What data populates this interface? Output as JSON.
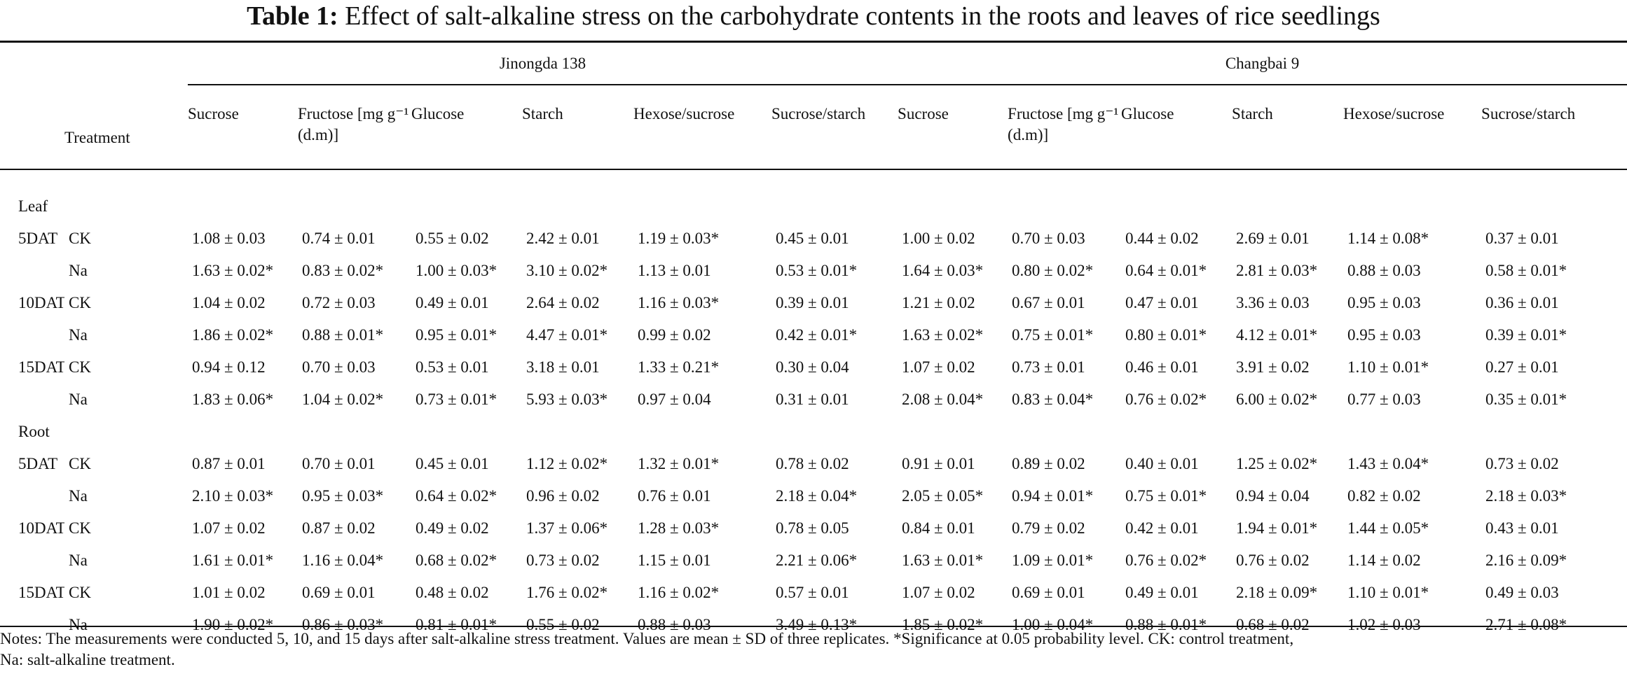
{
  "title": {
    "label": "Table 1:",
    "text": "Effect of salt-alkaline stress on the carbohydrate contents in the roots and leaves of rice seedlings"
  },
  "header": {
    "treatment": "Treatment",
    "variety1": "Jinongda 138",
    "variety2": "Changbai 9",
    "columns": [
      "Sucrose",
      "Fructose [mg g⁻¹ (d.m)]",
      "Glucose",
      "Starch",
      "Hexose/sucrose",
      "Sucrose/starch"
    ]
  },
  "sections": [
    {
      "label": "Leaf",
      "rows": [
        {
          "day": "5DAT",
          "treatment": "CK",
          "values": [
            "1.08 ± 0.03",
            "0.74 ± 0.01",
            "0.55 ± 0.02",
            "2.42 ± 0.01",
            "1.19 ± 0.03*",
            "0.45 ± 0.01",
            "1.00 ± 0.02",
            "0.70 ± 0.03",
            "0.44 ± 0.02",
            "2.69 ± 0.01",
            "1.14 ± 0.08*",
            "0.37 ± 0.01"
          ]
        },
        {
          "day": "",
          "treatment": "Na",
          "values": [
            "1.63 ± 0.02*",
            "0.83 ± 0.02*",
            "1.00 ± 0.03*",
            "3.10 ± 0.02*",
            "1.13 ± 0.01",
            "0.53 ± 0.01*",
            "1.64 ± 0.03*",
            "0.80 ± 0.02*",
            "0.64 ± 0.01*",
            "2.81 ± 0.03*",
            "0.88 ± 0.03",
            "0.58 ± 0.01*"
          ]
        },
        {
          "day": "10DAT",
          "treatment": "CK",
          "values": [
            "1.04 ± 0.02",
            "0.72 ± 0.03",
            "0.49 ± 0.01",
            "2.64 ± 0.02",
            "1.16 ± 0.03*",
            "0.39 ± 0.01",
            "1.21 ± 0.02",
            "0.67 ± 0.01",
            "0.47 ± 0.01",
            "3.36 ± 0.03",
            "0.95 ± 0.03",
            "0.36 ± 0.01"
          ]
        },
        {
          "day": "",
          "treatment": "Na",
          "values": [
            "1.86 ± 0.02*",
            "0.88 ± 0.01*",
            "0.95 ± 0.01*",
            "4.47 ± 0.01*",
            "0.99 ± 0.02",
            "0.42 ± 0.01*",
            "1.63 ± 0.02*",
            "0.75 ± 0.01*",
            "0.80 ± 0.01*",
            "4.12 ± 0.01*",
            "0.95 ± 0.03",
            "0.39 ± 0.01*"
          ]
        },
        {
          "day": "15DAT",
          "treatment": "CK",
          "values": [
            "0.94 ± 0.12",
            "0.70 ± 0.03",
            "0.53 ± 0.01",
            "3.18 ± 0.01",
            "1.33 ± 0.21*",
            "0.30 ± 0.04",
            "1.07 ± 0.02",
            "0.73 ± 0.01",
            "0.46 ± 0.01",
            "3.91 ± 0.02",
            "1.10 ± 0.01*",
            "0.27 ± 0.01"
          ]
        },
        {
          "day": "",
          "treatment": "Na",
          "values": [
            "1.83 ± 0.06*",
            "1.04 ± 0.02*",
            "0.73 ± 0.01*",
            "5.93 ± 0.03*",
            "0.97 ± 0.04",
            "0.31 ± 0.01",
            "2.08 ± 0.04*",
            "0.83 ± 0.04*",
            "0.76 ± 0.02*",
            "6.00 ± 0.02*",
            "0.77 ± 0.03",
            "0.35 ± 0.01*"
          ]
        }
      ]
    },
    {
      "label": "Root",
      "rows": [
        {
          "day": "5DAT",
          "treatment": "CK",
          "values": [
            "0.87 ± 0.01",
            "0.70 ± 0.01",
            "0.45 ± 0.01",
            "1.12 ± 0.02*",
            "1.32 ± 0.01*",
            "0.78 ± 0.02",
            "0.91 ± 0.01",
            "0.89 ± 0.02",
            "0.40 ± 0.01",
            "1.25 ± 0.02*",
            "1.43 ± 0.04*",
            "0.73 ± 0.02"
          ]
        },
        {
          "day": "",
          "treatment": "Na",
          "values": [
            "2.10 ± 0.03*",
            "0.95 ± 0.03*",
            "0.64 ± 0.02*",
            "0.96 ± 0.02",
            "0.76 ± 0.01",
            "2.18 ± 0.04*",
            "2.05 ± 0.05*",
            "0.94 ± 0.01*",
            "0.75 ± 0.01*",
            "0.94 ± 0.04",
            "0.82 ± 0.02",
            "2.18 ± 0.03*"
          ]
        },
        {
          "day": "10DAT",
          "treatment": "CK",
          "values": [
            "1.07 ± 0.02",
            "0.87 ± 0.02",
            "0.49 ± 0.02",
            "1.37 ± 0.06*",
            "1.28 ± 0.03*",
            "0.78 ± 0.05",
            "0.84 ± 0.01",
            "0.79 ± 0.02",
            "0.42 ± 0.01",
            "1.94 ± 0.01*",
            "1.44 ± 0.05*",
            "0.43 ± 0.01"
          ]
        },
        {
          "day": "",
          "treatment": "Na",
          "values": [
            "1.61 ± 0.01*",
            "1.16 ± 0.04*",
            "0.68 ± 0.02*",
            "0.73 ± 0.02",
            "1.15 ± 0.01",
            "2.21 ± 0.06*",
            "1.63 ± 0.01*",
            "1.09 ± 0.01*",
            "0.76 ± 0.02*",
            "0.76 ± 0.02",
            "1.14 ± 0.02",
            "2.16 ± 0.09*"
          ]
        },
        {
          "day": "15DAT",
          "treatment": "CK",
          "values": [
            "1.01 ± 0.02",
            "0.69 ± 0.01",
            "0.48 ± 0.02",
            "1.76 ± 0.02*",
            "1.16 ± 0.02*",
            "0.57 ± 0.01",
            "1.07 ± 0.02",
            "0.69 ± 0.01",
            "0.49 ± 0.01",
            "2.18 ± 0.09*",
            "1.10 ± 0.01*",
            "0.49 ± 0.03"
          ]
        },
        {
          "day": "",
          "treatment": "Na",
          "values": [
            "1.90 ± 0.02*",
            "0.86 ± 0.03*",
            "0.81 ± 0.01*",
            "0.55 ± 0.02",
            "0.88 ± 0.03",
            "3.49 ± 0.13*",
            "1.85 ± 0.02*",
            "1.00 ± 0.04*",
            "0.88 ± 0.01*",
            "0.68 ± 0.02",
            "1.02 ± 0.03",
            "2.71 ± 0.08*"
          ]
        }
      ]
    }
  ],
  "notes": {
    "line1": "Notes: The measurements were conducted 5, 10, and 15 days after salt-alkaline stress treatment. Values are mean ± SD of three replicates. *Significance at 0.05 probability level. CK: control treatment,",
    "line2": "Na: salt-alkaline treatment."
  }
}
